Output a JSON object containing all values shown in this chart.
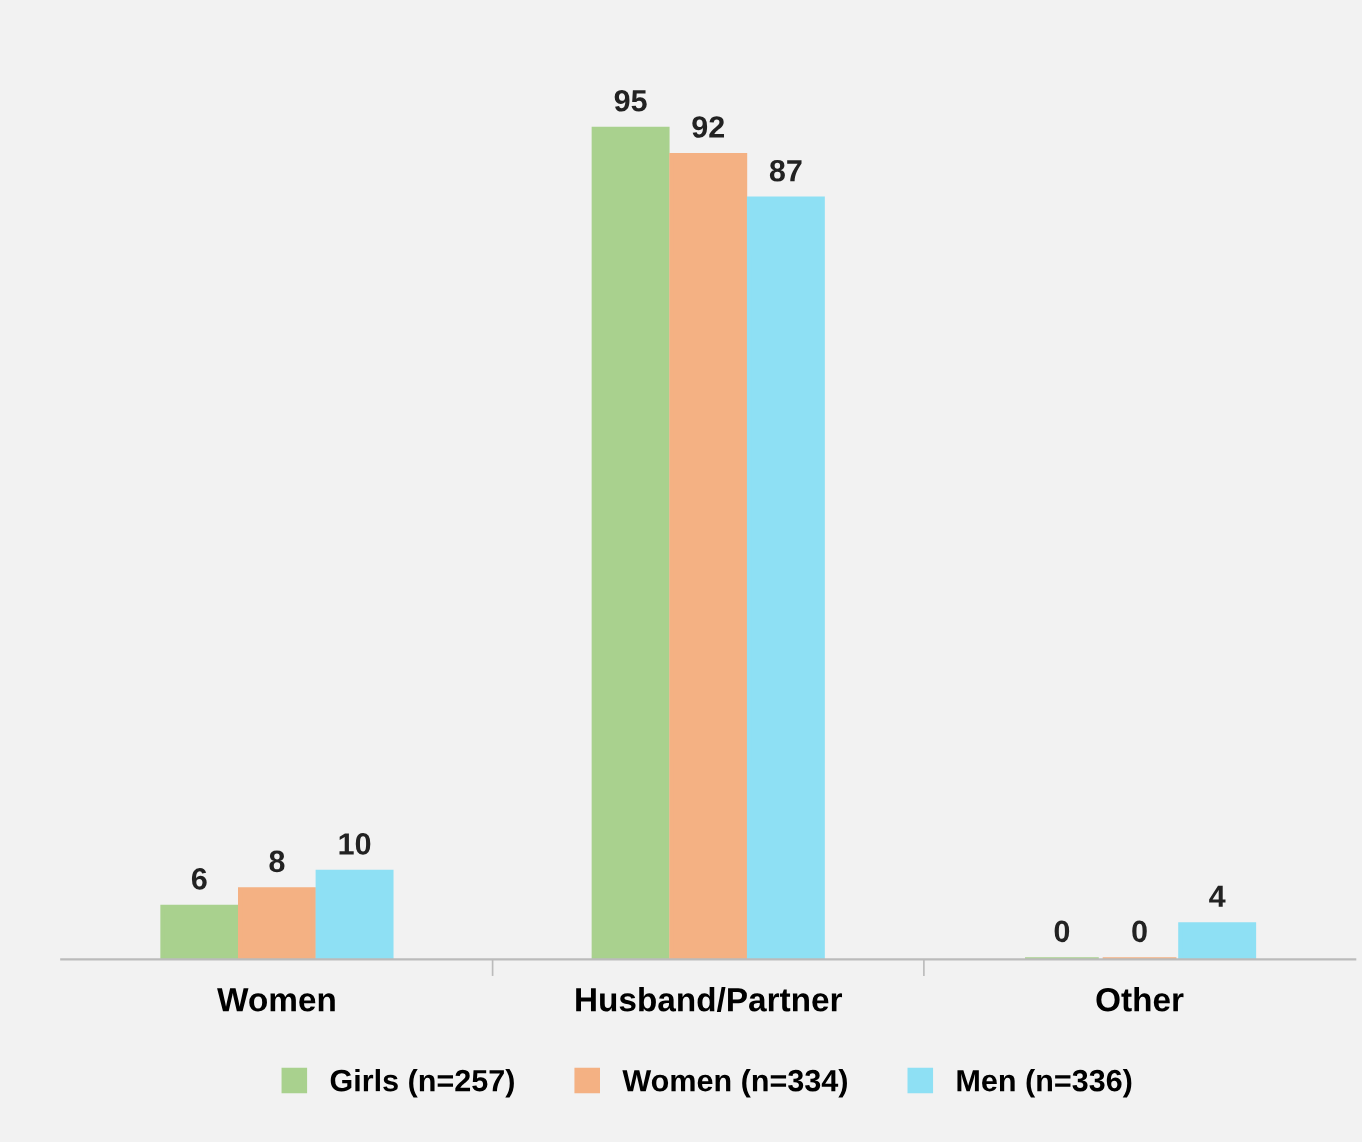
{
  "chart_data": {
    "type": "bar",
    "categories": [
      "Women",
      "Husband/Partner",
      "Other"
    ],
    "series": [
      {
        "name": "Girls (n=257)",
        "color": "#a9d18e",
        "values": [
          6,
          95,
          0
        ]
      },
      {
        "name": "Women (n=334)",
        "color": "#f4b183",
        "values": [
          8,
          92,
          0
        ]
      },
      {
        "name": "Men (n=336)",
        "color": "#8ee0f4",
        "values": [
          10,
          87,
          4
        ]
      }
    ],
    "data_labels": true,
    "legend": "bottom",
    "grid": false
  }
}
